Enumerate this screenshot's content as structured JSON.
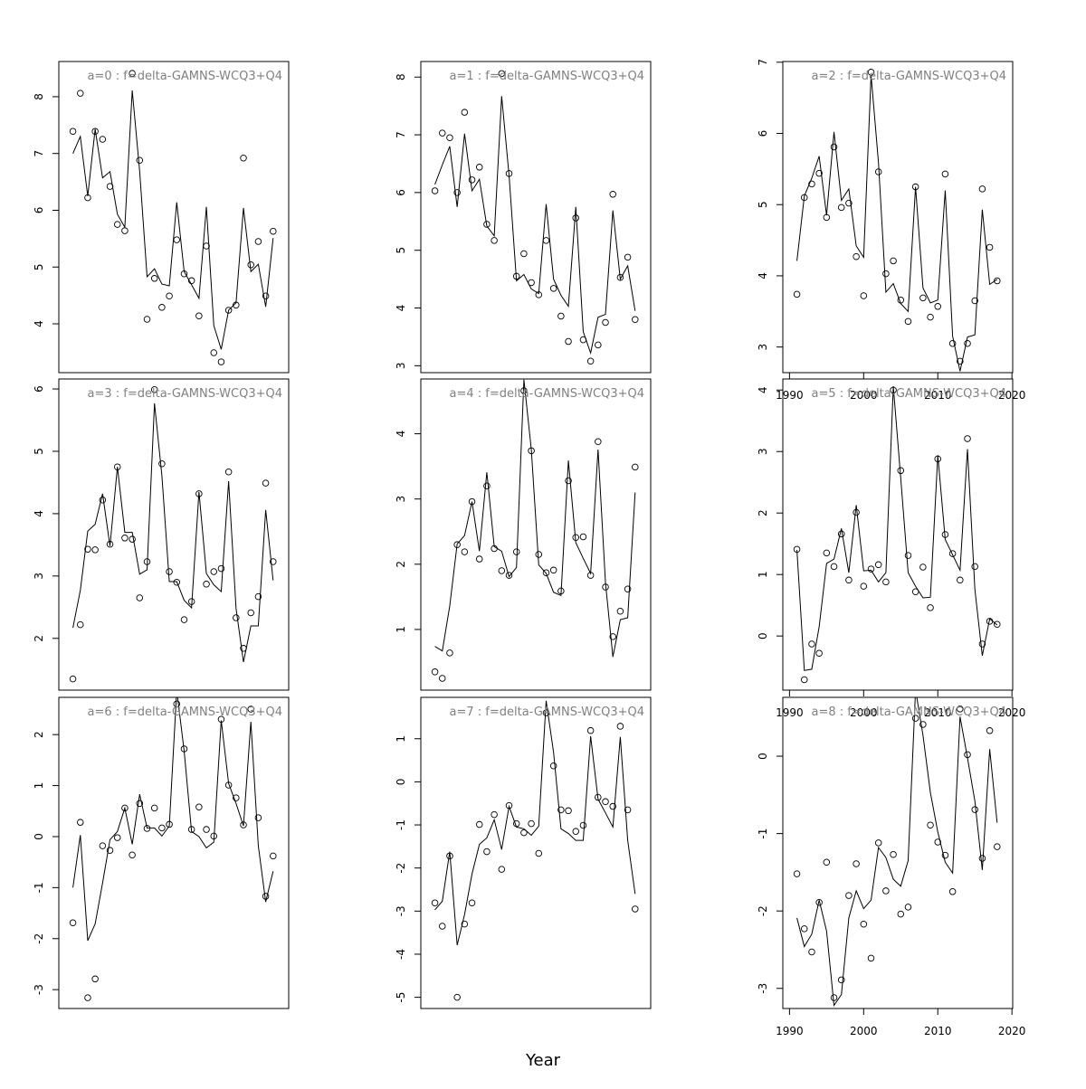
{
  "xlabel": "Year",
  "chart_data": [
    {
      "type": "line-points",
      "title": "a=0  :  f=delta-GAMNS-WCQ3+Q4",
      "x": [
        1991,
        1992,
        1993,
        1994,
        1995,
        1996,
        1997,
        1998,
        1999,
        2000,
        2001,
        2002,
        2003,
        2004,
        2005,
        2006,
        2007,
        2008,
        2009,
        2010,
        2011,
        2012,
        2013,
        2014,
        2015,
        2016,
        2017,
        2018
      ],
      "xlim": [
        1989.1,
        2020.1
      ],
      "ylim": [
        3.14,
        8.62
      ],
      "yticks": [
        4,
        5,
        6,
        7,
        8
      ],
      "series": [
        {
          "style": "line",
          "color": "#000000",
          "values": [
            7.0,
            7.3,
            6.25,
            7.43,
            6.57,
            6.68,
            5.93,
            5.7,
            8.11,
            6.69,
            4.83,
            4.97,
            4.7,
            4.67,
            6.14,
            4.92,
            4.69,
            4.45,
            6.06,
            3.97,
            3.55,
            4.24,
            4.37,
            6.04,
            4.92,
            5.05,
            4.3,
            5.51
          ]
        },
        {
          "style": "points",
          "color": "#000000",
          "values": [
            7.39,
            8.06,
            6.22,
            7.39,
            7.25,
            6.42,
            5.75,
            5.64,
            8.41,
            6.88,
            4.08,
            4.8,
            4.29,
            4.49,
            5.48,
            4.88,
            4.76,
            4.14,
            5.37,
            3.49,
            3.33,
            4.24,
            4.33,
            6.92,
            5.04,
            5.45,
            4.49,
            5.63
          ]
        }
      ]
    },
    {
      "type": "line-points",
      "title": "a=3  :  f=delta-GAMNS-WCQ3+Q4",
      "x": [
        1991,
        1992,
        1993,
        1994,
        1995,
        1996,
        1997,
        1998,
        1999,
        2000,
        2001,
        2002,
        2003,
        2004,
        2005,
        2006,
        2007,
        2008,
        2009,
        2010,
        2011,
        2012,
        2013,
        2014,
        2015,
        2016,
        2017,
        2018
      ],
      "xlim": [
        1989.1,
        2020.1
      ],
      "ylim": [
        1.17,
        6.16
      ],
      "yticks": [
        2,
        3,
        4,
        5,
        6
      ],
      "series": [
        {
          "style": "line",
          "color": "#000000",
          "values": [
            2.17,
            2.77,
            3.72,
            3.83,
            4.32,
            3.48,
            4.75,
            3.7,
            3.7,
            3.03,
            3.1,
            5.77,
            4.61,
            2.91,
            2.91,
            2.61,
            2.49,
            4.35,
            3.04,
            2.86,
            2.75,
            4.52,
            2.48,
            1.62,
            2.2,
            2.2,
            4.06,
            2.93
          ]
        },
        {
          "style": "points",
          "color": "#000000",
          "values": [
            1.35,
            2.22,
            3.43,
            3.42,
            4.22,
            3.51,
            4.75,
            3.61,
            3.59,
            2.65,
            3.23,
            5.99,
            4.8,
            3.07,
            2.9,
            2.3,
            2.59,
            4.32,
            2.87,
            3.07,
            3.12,
            4.67,
            2.33,
            1.84,
            2.41,
            2.67,
            4.49,
            3.23
          ]
        }
      ]
    },
    {
      "type": "line-points",
      "title": "a=6  :  f=delta-GAMNS-WCQ3+Q4",
      "x": [
        1991,
        1992,
        1993,
        1994,
        1995,
        1996,
        1997,
        1998,
        1999,
        2000,
        2001,
        2002,
        2003,
        2004,
        2005,
        2006,
        2007,
        2008,
        2009,
        2010,
        2011,
        2012,
        2013,
        2014,
        2015,
        2016,
        2017,
        2018
      ],
      "xlim": [
        1989.1,
        2020.1
      ],
      "ylim": [
        -3.37,
        2.73
      ],
      "yticks": [
        -3,
        -2,
        -1,
        0,
        1,
        2
      ],
      "series": [
        {
          "style": "line",
          "color": "#000000",
          "values": [
            -1.0,
            0.03,
            -2.04,
            -1.71,
            -0.91,
            -0.06,
            0.1,
            0.56,
            -0.15,
            0.83,
            0.17,
            0.17,
            0.01,
            0.21,
            2.87,
            1.68,
            0.1,
            0.0,
            -0.22,
            -0.11,
            2.28,
            1.04,
            0.65,
            0.21,
            2.25,
            -0.18,
            -1.28,
            -0.68
          ]
        },
        {
          "style": "points",
          "color": "#000000",
          "values": [
            -1.69,
            0.28,
            -3.16,
            -2.79,
            -0.18,
            -0.27,
            -0.02,
            0.56,
            -0.36,
            0.65,
            0.16,
            0.56,
            0.17,
            0.24,
            2.6,
            1.72,
            0.14,
            0.58,
            0.14,
            0.01,
            2.3,
            1.01,
            0.76,
            0.23,
            2.5,
            0.37,
            -1.17,
            -0.38
          ]
        }
      ]
    },
    {
      "type": "line-points",
      "title": "a=1  :  f=delta-GAMNS-WCQ3+Q4",
      "x": [
        1991,
        1992,
        1993,
        1994,
        1995,
        1996,
        1997,
        1998,
        1999,
        2000,
        2001,
        2002,
        2003,
        2004,
        2005,
        2006,
        2007,
        2008,
        2009,
        2010,
        2011,
        2012,
        2013,
        2014,
        2015,
        2016,
        2017,
        2018
      ],
      "xlim": [
        1989.1,
        2020.1
      ],
      "ylim": [
        2.88,
        8.27
      ],
      "yticks": [
        3,
        4,
        5,
        6,
        7,
        8
      ],
      "series": [
        {
          "style": "line",
          "color": "#000000",
          "values": [
            6.14,
            6.48,
            6.8,
            5.75,
            7.02,
            6.03,
            6.23,
            5.42,
            5.25,
            7.67,
            6.3,
            4.47,
            4.58,
            4.33,
            4.25,
            5.8,
            4.5,
            4.22,
            4.03,
            5.75,
            3.59,
            3.22,
            3.84,
            3.89,
            5.69,
            4.5,
            4.73,
            3.95
          ]
        },
        {
          "style": "points",
          "color": "#000000",
          "values": [
            6.03,
            7.03,
            6.95,
            6.0,
            7.39,
            6.22,
            6.44,
            5.45,
            5.17,
            8.06,
            6.33,
            4.55,
            4.94,
            4.44,
            4.23,
            5.17,
            4.34,
            3.86,
            3.42,
            5.56,
            3.45,
            3.08,
            3.36,
            3.75,
            5.97,
            4.53,
            4.88,
            3.8
          ]
        }
      ]
    },
    {
      "type": "line-points",
      "title": "a=4  :  f=delta-GAMNS-WCQ3+Q4",
      "x": [
        1991,
        1992,
        1993,
        1994,
        1995,
        1996,
        1997,
        1998,
        1999,
        2000,
        2001,
        2002,
        2003,
        2004,
        2005,
        2006,
        2007,
        2008,
        2009,
        2010,
        2011,
        2012,
        2013,
        2014,
        2015,
        2016,
        2017,
        2018
      ],
      "xlim": [
        1989.1,
        2020.1
      ],
      "ylim": [
        0.07,
        4.84
      ],
      "yticks": [
        1,
        2,
        3,
        4
      ],
      "series": [
        {
          "style": "line",
          "color": "#000000",
          "values": [
            0.74,
            0.67,
            1.36,
            2.31,
            2.44,
            2.96,
            2.2,
            3.41,
            2.27,
            2.2,
            1.81,
            1.95,
            4.83,
            3.76,
            1.99,
            1.86,
            1.57,
            1.52,
            3.59,
            2.33,
            2.09,
            1.86,
            3.76,
            1.72,
            0.58,
            1.15,
            1.18,
            3.1
          ]
        },
        {
          "style": "points",
          "color": "#000000",
          "values": [
            0.35,
            0.25,
            0.64,
            2.3,
            2.19,
            2.96,
            2.08,
            3.2,
            2.24,
            1.9,
            1.83,
            2.19,
            4.66,
            3.74,
            2.15,
            1.87,
            1.91,
            1.59,
            3.28,
            2.41,
            2.42,
            1.83,
            3.88,
            1.65,
            0.89,
            1.28,
            1.62,
            3.49
          ]
        }
      ]
    },
    {
      "type": "line-points",
      "title": "a=7  :  f=delta-GAMNS-WCQ3+Q4",
      "x": [
        1991,
        1992,
        1993,
        1994,
        1995,
        1996,
        1997,
        1998,
        1999,
        2000,
        2001,
        2002,
        2003,
        2004,
        2005,
        2006,
        2007,
        2008,
        2009,
        2010,
        2011,
        2012,
        2013,
        2014,
        2015,
        2016,
        2017,
        2018
      ],
      "xlim": [
        1989.1,
        2020.1
      ],
      "ylim": [
        -5.26,
        1.96
      ],
      "yticks": [
        -5,
        -4,
        -3,
        -2,
        -1,
        0,
        1
      ],
      "series": [
        {
          "style": "line",
          "color": "#000000",
          "values": [
            -2.97,
            -2.77,
            -1.62,
            -3.79,
            -3.08,
            -2.14,
            -1.45,
            -1.3,
            -0.88,
            -1.57,
            -0.57,
            -1.05,
            -1.09,
            -1.24,
            -1.03,
            1.88,
            0.69,
            -1.09,
            -1.2,
            -1.36,
            -1.36,
            1.06,
            -0.4,
            -0.72,
            -1.05,
            1.04,
            -1.36,
            -2.6
          ]
        },
        {
          "style": "points",
          "color": "#000000",
          "values": [
            -2.81,
            -3.35,
            -1.72,
            -5.0,
            -3.3,
            -2.81,
            -0.99,
            -1.62,
            -0.76,
            -2.03,
            -0.55,
            -0.97,
            -1.18,
            -0.97,
            -1.66,
            1.6,
            0.37,
            -0.65,
            -0.67,
            -1.15,
            -1.01,
            1.19,
            -0.36,
            -0.46,
            -0.57,
            1.29,
            -0.65,
            -2.95
          ]
        }
      ]
    },
    {
      "type": "line-points",
      "title": "a=2  :  f=delta-GAMNS-WCQ3+Q4",
      "x": [
        1991,
        1992,
        1993,
        1994,
        1995,
        1996,
        1997,
        1998,
        1999,
        2000,
        2001,
        2002,
        2003,
        2004,
        2005,
        2006,
        2007,
        2008,
        2009,
        2010,
        2011,
        2012,
        2013,
        2014,
        2015,
        2016,
        2017,
        2018
      ],
      "xlim": [
        1989.1,
        2020.1
      ],
      "ylim": [
        2.64,
        7.01
      ],
      "yticks": [
        3,
        4,
        5,
        6,
        7
      ],
      "xticks": [
        1990,
        2000,
        2010,
        2020
      ],
      "series": [
        {
          "style": "line",
          "color": "#000000",
          "values": [
            4.21,
            5.12,
            5.37,
            5.68,
            4.85,
            6.02,
            5.06,
            5.22,
            4.42,
            4.26,
            6.82,
            5.59,
            3.77,
            3.89,
            3.61,
            3.5,
            5.25,
            3.83,
            3.62,
            3.66,
            5.2,
            3.15,
            2.66,
            3.14,
            3.17,
            4.93,
            3.88,
            3.95
          ]
        },
        {
          "style": "points",
          "color": "#000000",
          "values": [
            3.74,
            5.1,
            5.29,
            5.44,
            4.82,
            5.81,
            4.96,
            5.02,
            4.27,
            3.72,
            6.86,
            5.46,
            4.03,
            4.21,
            3.66,
            3.36,
            5.25,
            3.69,
            3.42,
            3.57,
            5.43,
            3.05,
            2.8,
            3.05,
            3.65,
            5.22,
            4.4,
            3.93
          ]
        }
      ]
    },
    {
      "type": "line-points",
      "title": "a=5  :  f=delta-GAMNS-WCQ3+Q4",
      "x": [
        1991,
        1992,
        1993,
        1994,
        1995,
        1996,
        1997,
        1998,
        1999,
        2000,
        2001,
        2002,
        2003,
        2004,
        2005,
        2006,
        2007,
        2008,
        2009,
        2010,
        2011,
        2012,
        2013,
        2014,
        2015,
        2016,
        2017,
        2018
      ],
      "xlim": [
        1989.1,
        2020.1
      ],
      "ylim": [
        -0.88,
        4.18
      ],
      "yticks": [
        0,
        1,
        2,
        3,
        4
      ],
      "xticks": [
        1990,
        2000,
        2010,
        2020
      ],
      "series": [
        {
          "style": "line",
          "color": "#000000",
          "values": [
            1.4,
            -0.56,
            -0.54,
            0.15,
            1.18,
            1.25,
            1.75,
            1.03,
            2.13,
            1.06,
            1.07,
            0.88,
            1.03,
            4.06,
            2.57,
            1.03,
            0.81,
            0.62,
            0.63,
            2.94,
            1.57,
            1.32,
            1.07,
            3.04,
            0.76,
            -0.32,
            0.28,
            0.18
          ]
        },
        {
          "style": "points",
          "color": "#000000",
          "values": [
            1.41,
            -0.71,
            -0.13,
            -0.28,
            1.35,
            1.13,
            1.66,
            0.91,
            2.01,
            0.81,
            1.09,
            1.16,
            0.88,
            4.0,
            2.69,
            1.31,
            0.72,
            1.12,
            0.46,
            2.88,
            1.65,
            1.34,
            0.91,
            3.21,
            1.13,
            -0.13,
            0.24,
            0.19
          ]
        }
      ]
    },
    {
      "type": "line-points",
      "title": "a=8  :  f=delta-GAMNS-WCQ3+Q4",
      "x": [
        1991,
        1992,
        1993,
        1994,
        1995,
        1996,
        1997,
        1998,
        1999,
        2000,
        2001,
        2002,
        2003,
        2004,
        2005,
        2006,
        2007,
        2008,
        2009,
        2010,
        2011,
        2012,
        2013,
        2014,
        2015,
        2016,
        2017,
        2018
      ],
      "xlim": [
        1989.1,
        2020.1
      ],
      "ylim": [
        -3.26,
        0.76
      ],
      "yticks": [
        -3,
        -2,
        -1,
        0
      ],
      "xticks": [
        1990,
        2000,
        2010,
        2020
      ],
      "series": [
        {
          "style": "line",
          "color": "#000000",
          "values": [
            -2.09,
            -2.46,
            -2.3,
            -1.86,
            -2.26,
            -3.22,
            -3.08,
            -2.09,
            -1.74,
            -1.97,
            -1.86,
            -1.18,
            -1.31,
            -1.59,
            -1.68,
            -1.35,
            0.86,
            0.27,
            -0.47,
            -0.98,
            -1.37,
            -1.51,
            0.51,
            -0.02,
            -0.58,
            -1.47,
            0.09,
            -0.86
          ]
        },
        {
          "style": "points",
          "color": "#000000",
          "values": [
            -1.52,
            -2.23,
            -2.53,
            -1.89,
            -1.37,
            -3.12,
            -2.89,
            -1.8,
            -1.39,
            -2.17,
            -2.61,
            -1.12,
            -1.74,
            -1.27,
            -2.04,
            -1.95,
            0.49,
            0.41,
            -0.89,
            -1.11,
            -1.28,
            -1.75,
            0.61,
            0.02,
            -0.69,
            -1.32,
            0.33,
            -1.17
          ]
        }
      ]
    }
  ]
}
